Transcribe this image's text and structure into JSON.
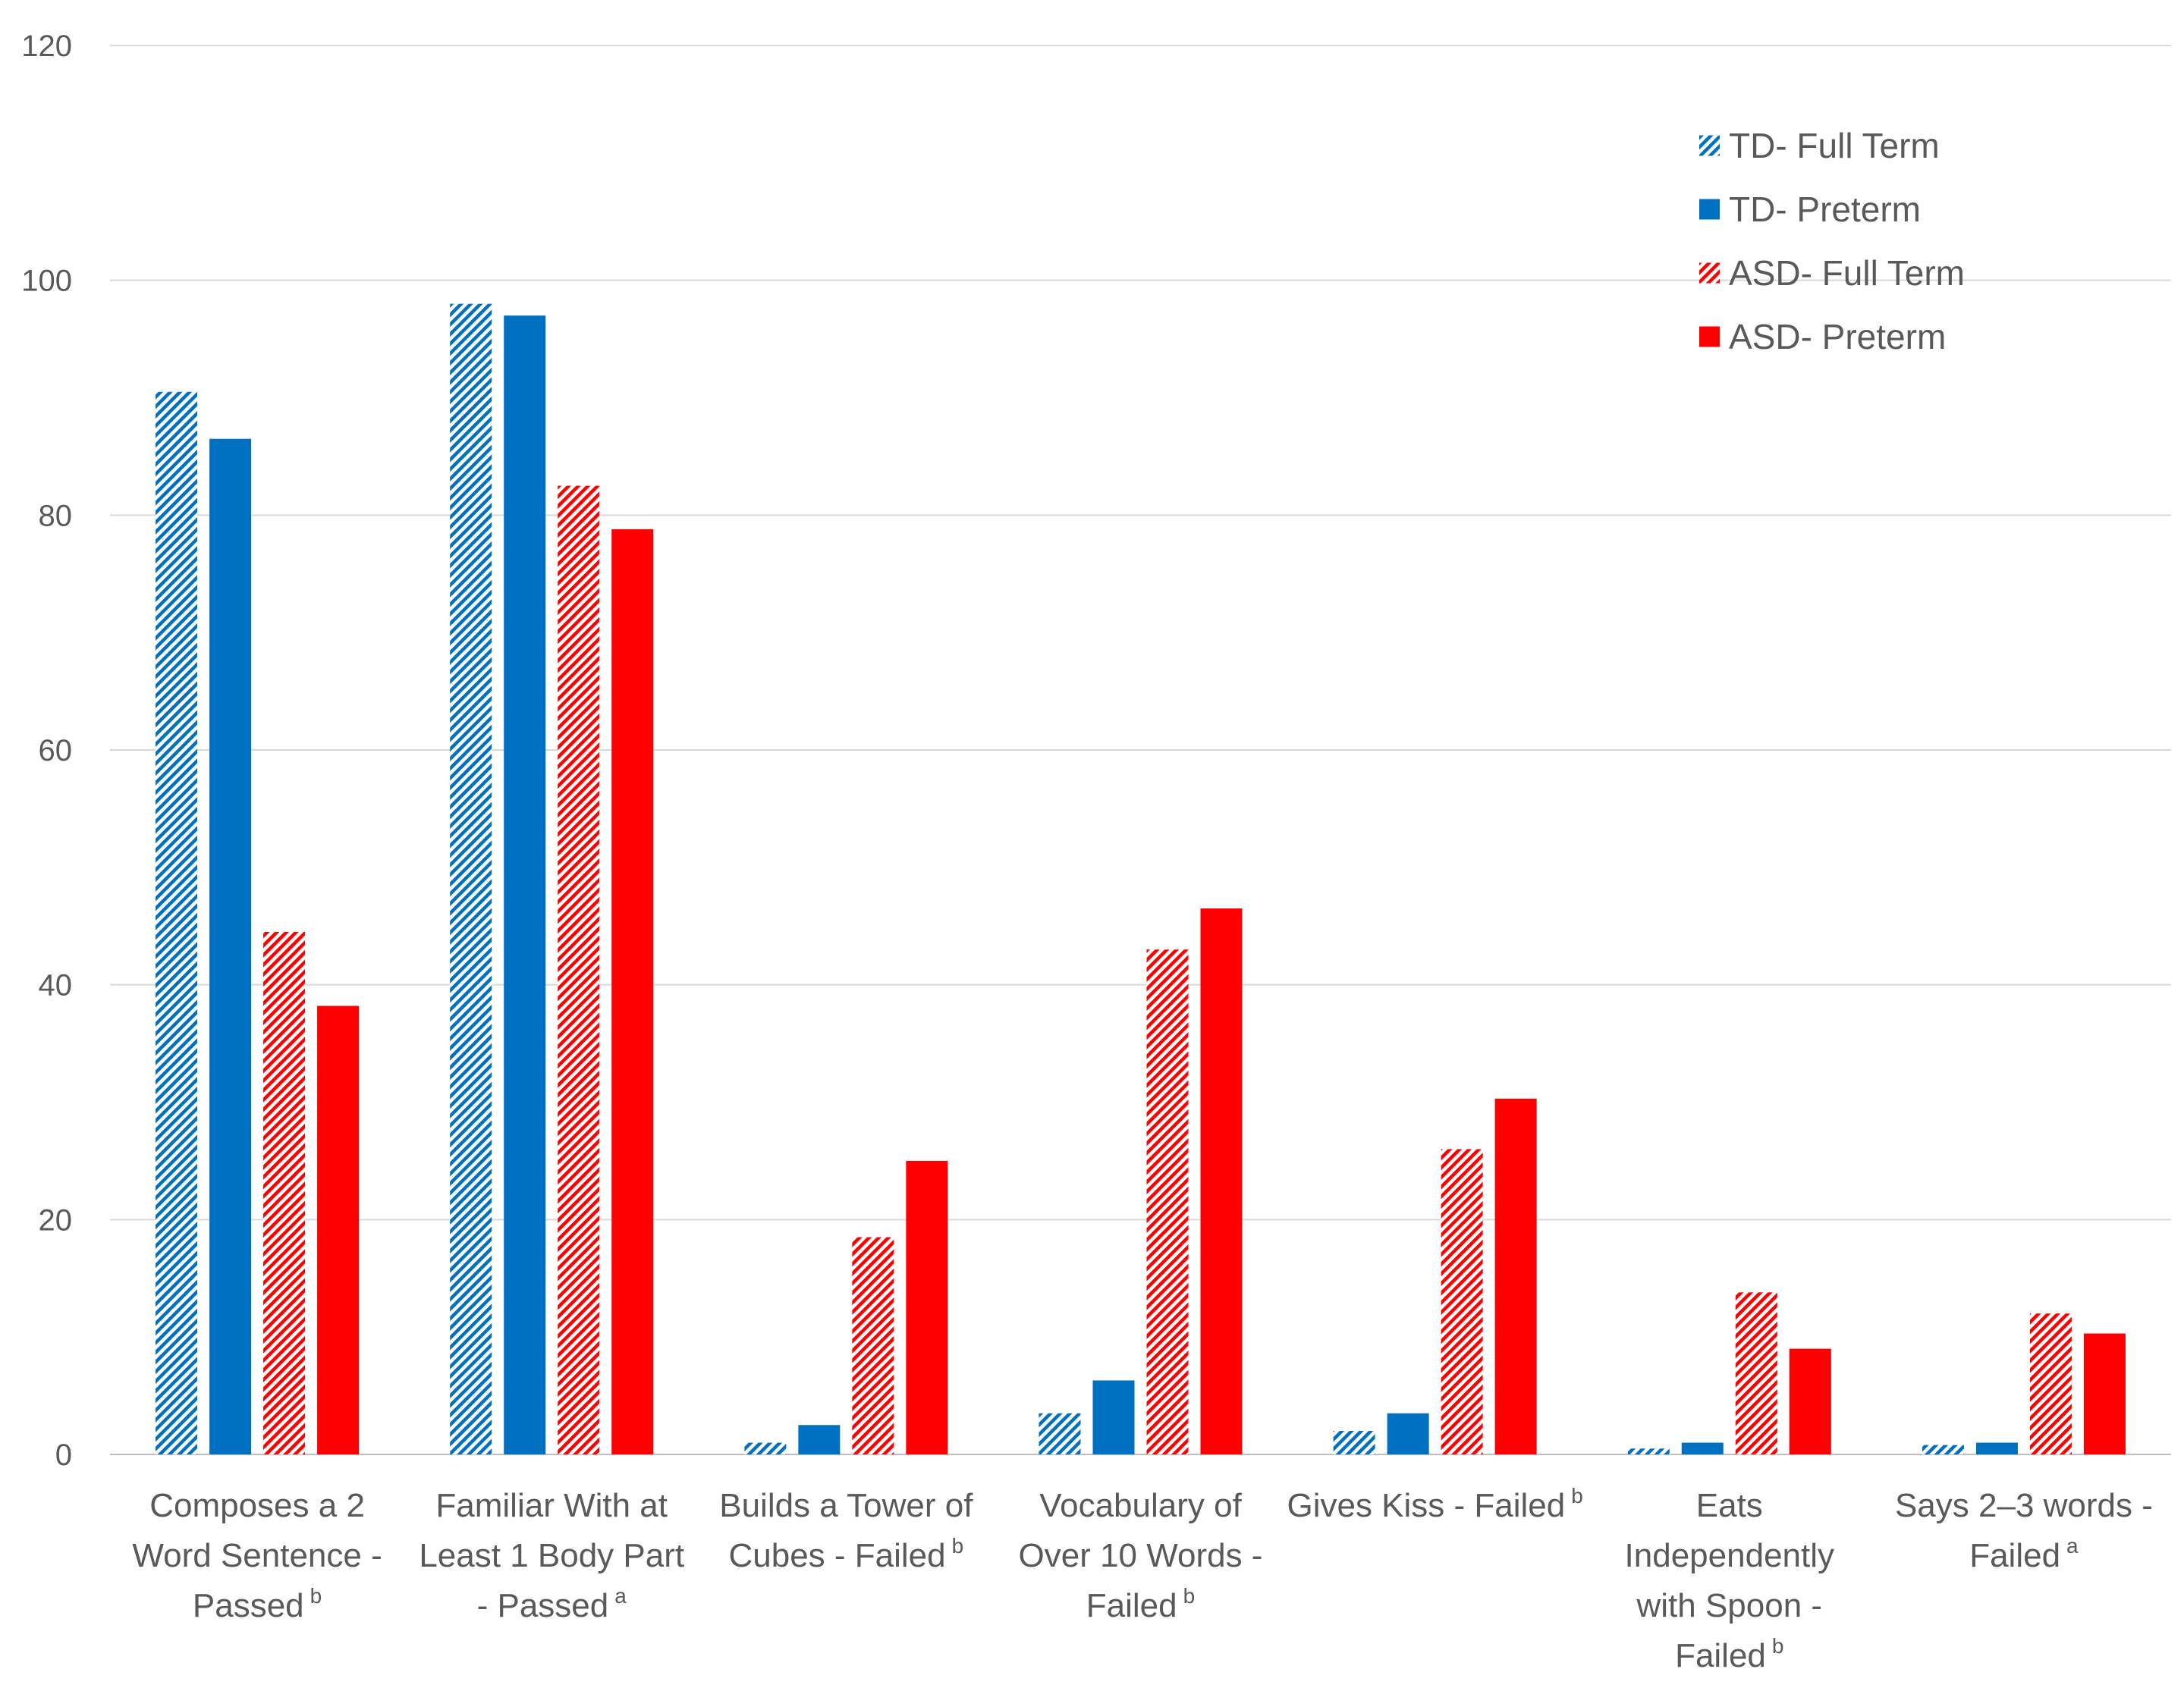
{
  "chart_data": {
    "type": "bar",
    "title": "",
    "xlabel": "",
    "ylabel": "",
    "ylim": [
      0,
      120
    ],
    "yticks": [
      0,
      20,
      40,
      60,
      80,
      100,
      120
    ],
    "grid": true,
    "legend_position": "top-right",
    "categories": [
      {
        "lines": [
          "Composes a 2",
          "Word Sentence -",
          "Passed"
        ],
        "sup": "b"
      },
      {
        "lines": [
          "Familiar With at",
          "Least 1 Body Part",
          "- Passed"
        ],
        "sup": "a"
      },
      {
        "lines": [
          "Builds a Tower of",
          "Cubes - Failed"
        ],
        "sup": "b"
      },
      {
        "lines": [
          "Vocabulary of",
          "Over 10 Words -",
          "Failed"
        ],
        "sup": "b"
      },
      {
        "lines": [
          "Gives Kiss - Failed"
        ],
        "sup": "b"
      },
      {
        "lines": [
          "Eats",
          "Independently",
          "with Spoon -",
          "Failed"
        ],
        "sup": "b"
      },
      {
        "lines": [
          "Says 2–3 words -",
          "Failed"
        ],
        "sup": "a"
      }
    ],
    "series": [
      {
        "name": "TD- Full Term",
        "color": "#0070C0",
        "pattern": "hatch",
        "values": [
          90.5,
          98,
          1,
          3.5,
          2,
          0.5,
          0.8
        ]
      },
      {
        "name": "TD- Preterm",
        "color": "#0070C0",
        "pattern": "solid",
        "values": [
          86.5,
          97,
          2.5,
          6.3,
          3.5,
          1,
          1
        ]
      },
      {
        "name": "ASD- Full Term",
        "color": "#FF0000",
        "pattern": "hatch",
        "values": [
          44.5,
          82.5,
          18.5,
          43,
          26,
          13.8,
          12
        ]
      },
      {
        "name": "ASD- Preterm",
        "color": "#FF0000",
        "pattern": "solid",
        "values": [
          38.2,
          78.8,
          25,
          46.5,
          30.3,
          9,
          10.3
        ]
      }
    ]
  }
}
